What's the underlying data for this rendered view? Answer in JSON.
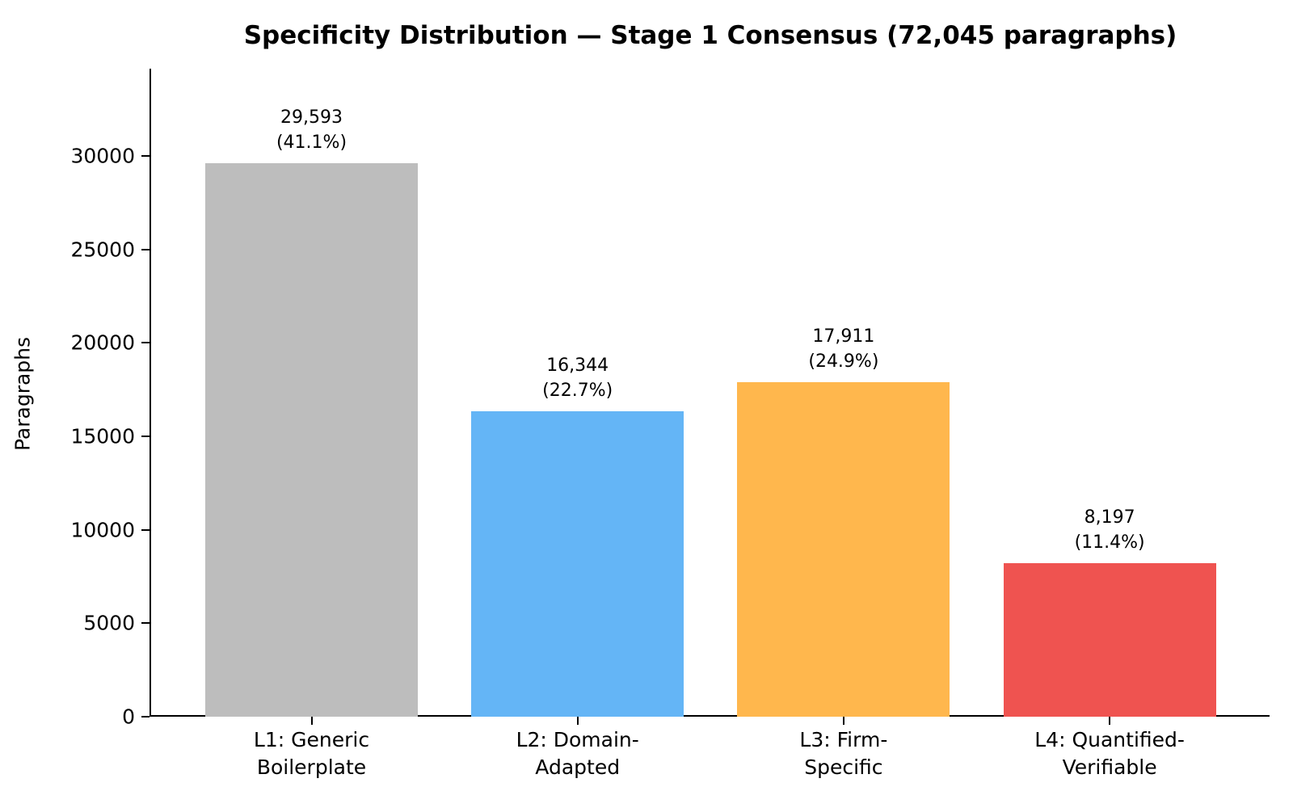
{
  "chart_data": {
    "type": "bar",
    "title": "Specificity Distribution — Stage 1 Consensus (72,045 paragraphs)",
    "xlabel": "",
    "ylabel": "Paragraphs",
    "total_paragraphs": "72,045",
    "categories": [
      "L1: Generic\nBoilerplate",
      "L2: Domain-\nAdapted",
      "L3: Firm-\nSpecific",
      "L4: Quantified-\nVerifiable"
    ],
    "values": [
      29593,
      16344,
      17911,
      8197
    ],
    "percentages": [
      41.1,
      22.7,
      24.9,
      11.4
    ],
    "bar_value_labels": [
      "29,593\n(41.1%)",
      "16,344\n(22.7%)",
      "17,911\n(24.9%)",
      "8,197\n(11.4%)"
    ],
    "bar_colors": [
      "#bdbdbd",
      "#64b5f6",
      "#ffb74d",
      "#ef5350"
    ],
    "yticks": [
      0,
      5000,
      10000,
      15000,
      20000,
      25000,
      30000
    ],
    "ylim": [
      0,
      34670
    ],
    "grid": false,
    "legend_position": "none",
    "text_color": "#000000",
    "background_color": "#ffffff"
  }
}
